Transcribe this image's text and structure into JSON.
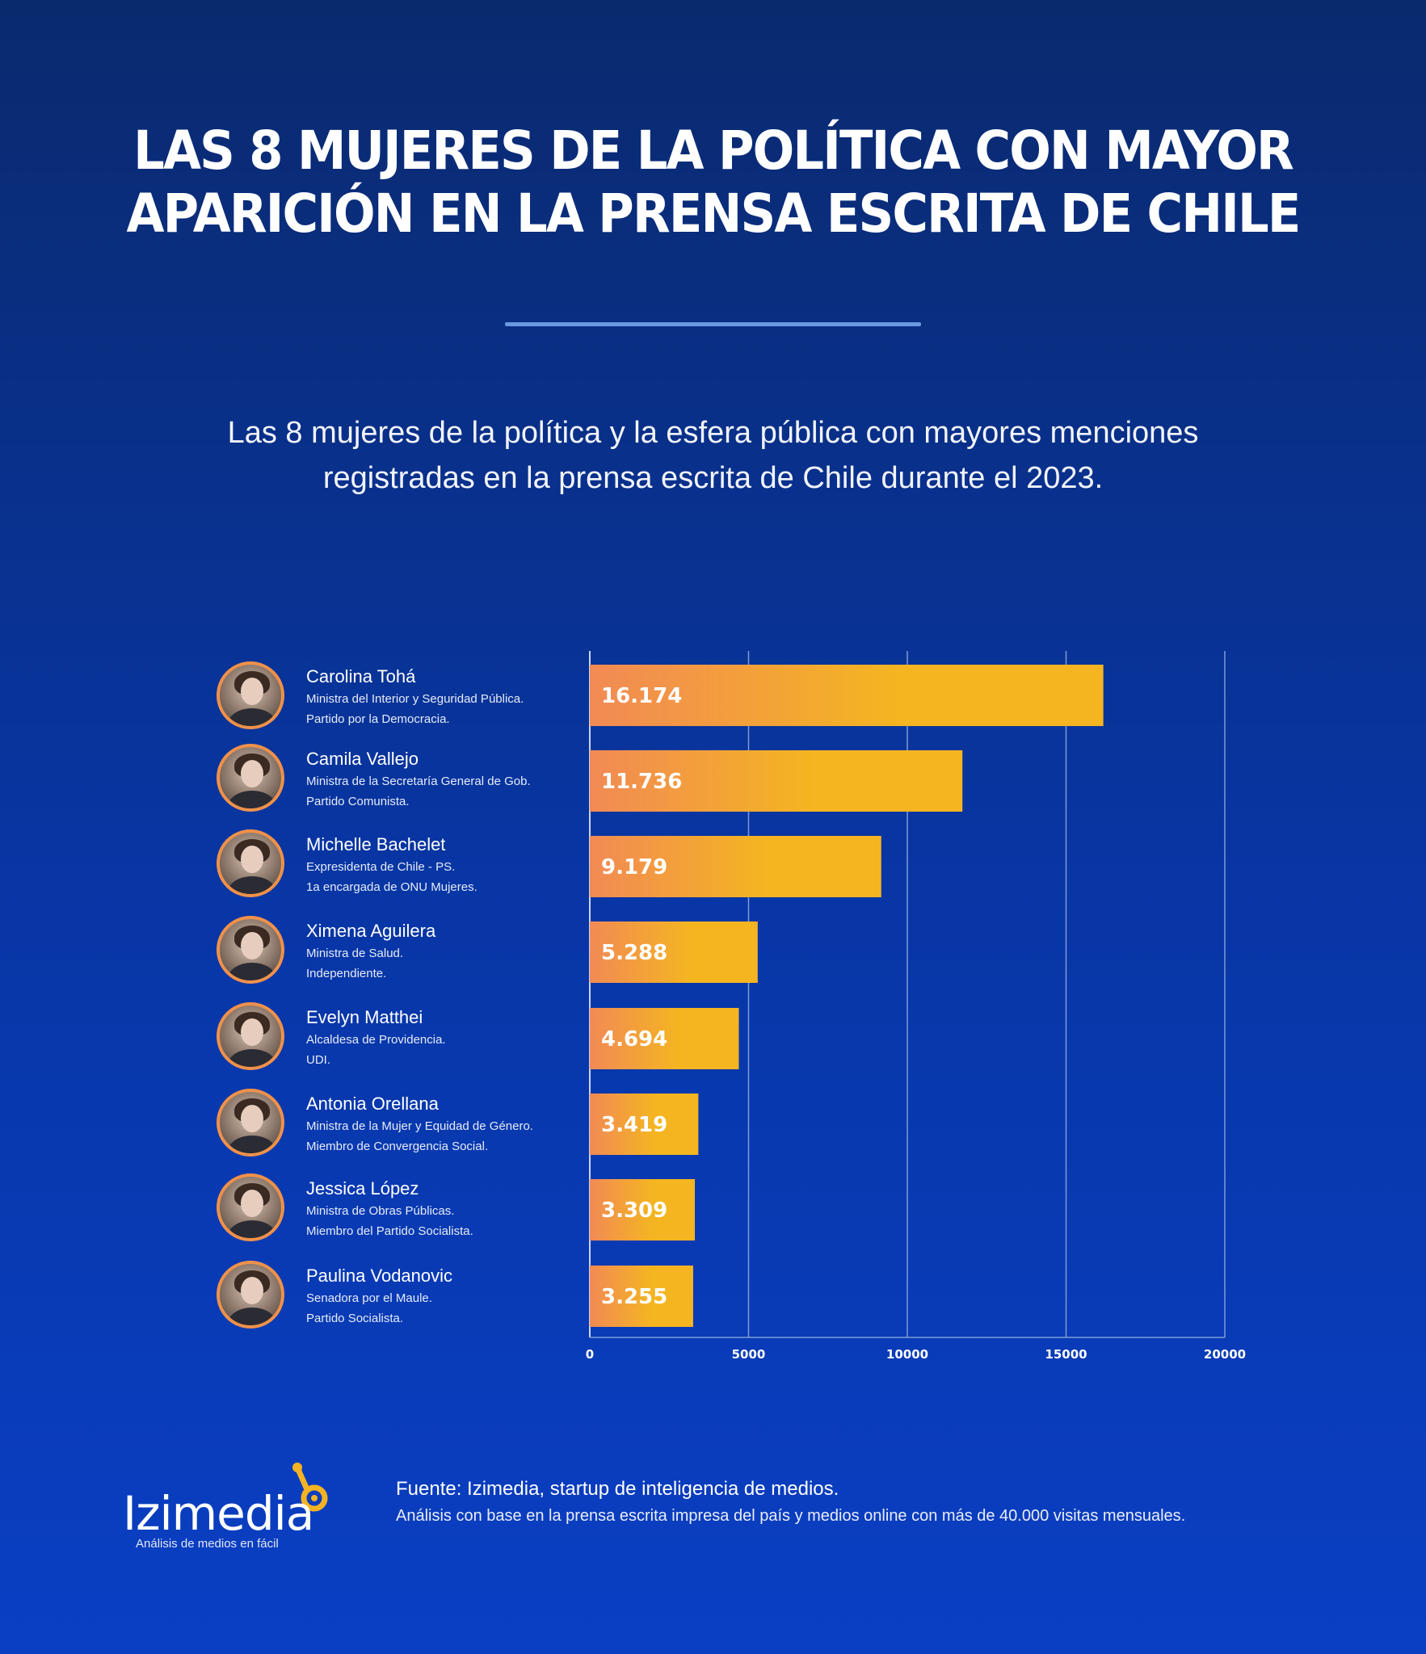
{
  "header": {
    "title_line1": "LAS 8 MUJERES DE LA POLÍTICA CON MAYOR",
    "title_line2": "APARICIÓN EN LA PRENSA ESCRITA DE CHILE",
    "subtitle_line1": "Las 8 mujeres de la política y la esfera pública con mayores menciones",
    "subtitle_line2": "registradas en la prensa escrita de Chile durante el 2023."
  },
  "people": [
    {
      "name": "Carolina Tohá",
      "role": "Ministra del Interior y Seguridad Pública.",
      "party": "Partido por la Democracia."
    },
    {
      "name": "Camila Vallejo",
      "role": "Ministra de la Secretaría General de Gob.",
      "party": "Partido Comunista."
    },
    {
      "name": "Michelle Bachelet",
      "role": "Expresidenta de Chile - PS.",
      "party": "1a encargada de ONU Mujeres."
    },
    {
      "name": "Ximena Aguilera",
      "role": "Ministra de Salud.",
      "party": "Independiente."
    },
    {
      "name": "Evelyn Matthei",
      "role": "Alcaldesa de Providencia.",
      "party": "UDI."
    },
    {
      "name": "Antonia Orellana",
      "role": "Ministra de la Mujer y Equidad de Género.",
      "party": "Miembro de Convergencia Social."
    },
    {
      "name": "Jessica López",
      "role": "Ministra de Obras Públicas.",
      "party": "Miembro del Partido Socialista."
    },
    {
      "name": "Paulina Vodanovic",
      "role": "Senadora por el Maule.",
      "party": "Partido Socialista."
    }
  ],
  "chart_data": {
    "type": "bar",
    "orientation": "horizontal",
    "categories": [
      "Carolina Tohá",
      "Camila Vallejo",
      "Michelle Bachelet",
      "Ximena Aguilera",
      "Evelyn Matthei",
      "Antonia Orellana",
      "Jessica López",
      "Paulina Vodanovic"
    ],
    "values": [
      16174,
      11736,
      9179,
      5288,
      4694,
      3419,
      3309,
      3255
    ],
    "value_labels": [
      "16.174",
      "11.736",
      "9.179",
      "5.288",
      "4.694",
      "3.419",
      "3.309",
      "3.255"
    ],
    "xlim": [
      0,
      20000
    ],
    "xticks": [
      0,
      5000,
      10000,
      15000,
      20000
    ],
    "xtick_labels": [
      "0",
      "5000",
      "10000",
      "15000",
      "20000"
    ],
    "grid": "vertical",
    "bar_gradient": [
      "#f28a55",
      "#f4b521"
    ]
  },
  "footer": {
    "logo_text": "Izimedia",
    "tagline": "Análisis de medios en fácil",
    "source_line1": "Fuente: Izimedia, startup de inteligencia de medios.",
    "source_line2": "Análisis con base en la prensa escrita impresa del país y medios online con más de 40.000 visitas mensuales."
  },
  "colors": {
    "accent": "#f0914a",
    "logo_accent": "#f5b323",
    "divider": "#6a98df"
  }
}
